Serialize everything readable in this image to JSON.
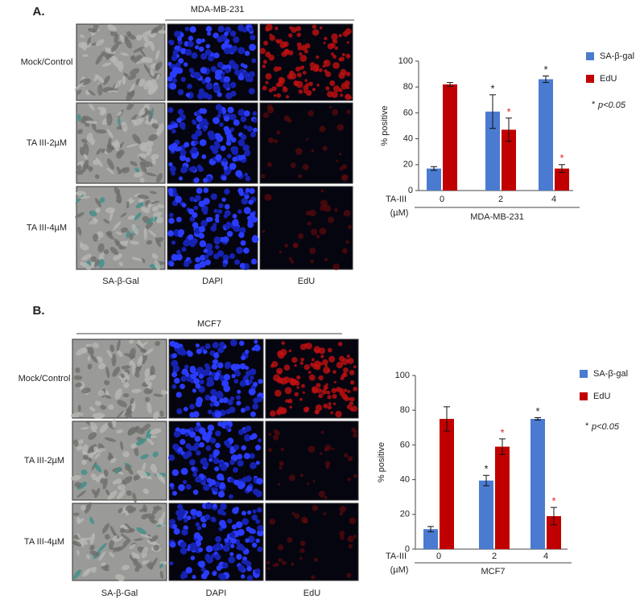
{
  "figure": {
    "panels": [
      {
        "label": "A.",
        "cell_line": "MDA-MB-231",
        "row_labels": [
          "Mock/Control",
          "TA III-2µM",
          "TA III-4µM"
        ],
        "column_labels": [
          "SA-β-Gal",
          "DAPI",
          "EdU"
        ]
      },
      {
        "label": "B.",
        "cell_line": "MCF7",
        "row_labels": [
          "Mock/Control",
          "TA III-2µM",
          "TA III-4µM"
        ],
        "column_labels": [
          "SA-β-Gal",
          "DAPI",
          "EdU"
        ]
      }
    ]
  },
  "chart_data": [
    {
      "type": "bar",
      "y_label": "% positive",
      "x_label": "MDA-MB-231",
      "x_prefix": "TA-III",
      "x_unit": "(µM)",
      "categories": [
        "0",
        "2",
        "4"
      ],
      "ylim": [
        0,
        100
      ],
      "yticks": [
        0,
        20,
        40,
        60,
        80,
        100
      ],
      "note_mark": "*",
      "note_text": "p<0.05",
      "series": [
        {
          "name": "SA-β-gal",
          "color": "#4a7bd0",
          "values": [
            17,
            61,
            86
          ],
          "errors": [
            1.5,
            13,
            2.5
          ],
          "significant": [
            false,
            true,
            true
          ],
          "significance_label": "*",
          "significance_color": "#222"
        },
        {
          "name": "EdU",
          "color": "#c00000",
          "values": [
            82,
            47,
            17
          ],
          "errors": [
            1.5,
            9,
            3
          ],
          "significant": [
            false,
            true,
            true
          ],
          "significance_label": "*",
          "significance_color": "#e02020"
        }
      ]
    },
    {
      "type": "bar",
      "y_label": "% positive",
      "x_label": "MCF7",
      "x_prefix": "TA-III",
      "x_unit": "(µM)",
      "categories": [
        "0",
        "2",
        "4"
      ],
      "ylim": [
        0,
        100
      ],
      "yticks": [
        0,
        20,
        40,
        60,
        80,
        100
      ],
      "note_mark": "*",
      "note_text": "p<0.05",
      "series": [
        {
          "name": "SA-β-gal",
          "color": "#4a7bd0",
          "values": [
            11.5,
            39.5,
            75
          ],
          "errors": [
            1.5,
            3,
            0.7
          ],
          "significant": [
            false,
            true,
            true
          ],
          "significance_label": "*",
          "significance_color": "#222"
        },
        {
          "name": "EdU",
          "color": "#c00000",
          "values": [
            75,
            59,
            19
          ],
          "errors": [
            7,
            4.5,
            5
          ],
          "significant": [
            false,
            true,
            true
          ],
          "significance_label": "*",
          "significance_color": "#e02020"
        }
      ]
    }
  ]
}
